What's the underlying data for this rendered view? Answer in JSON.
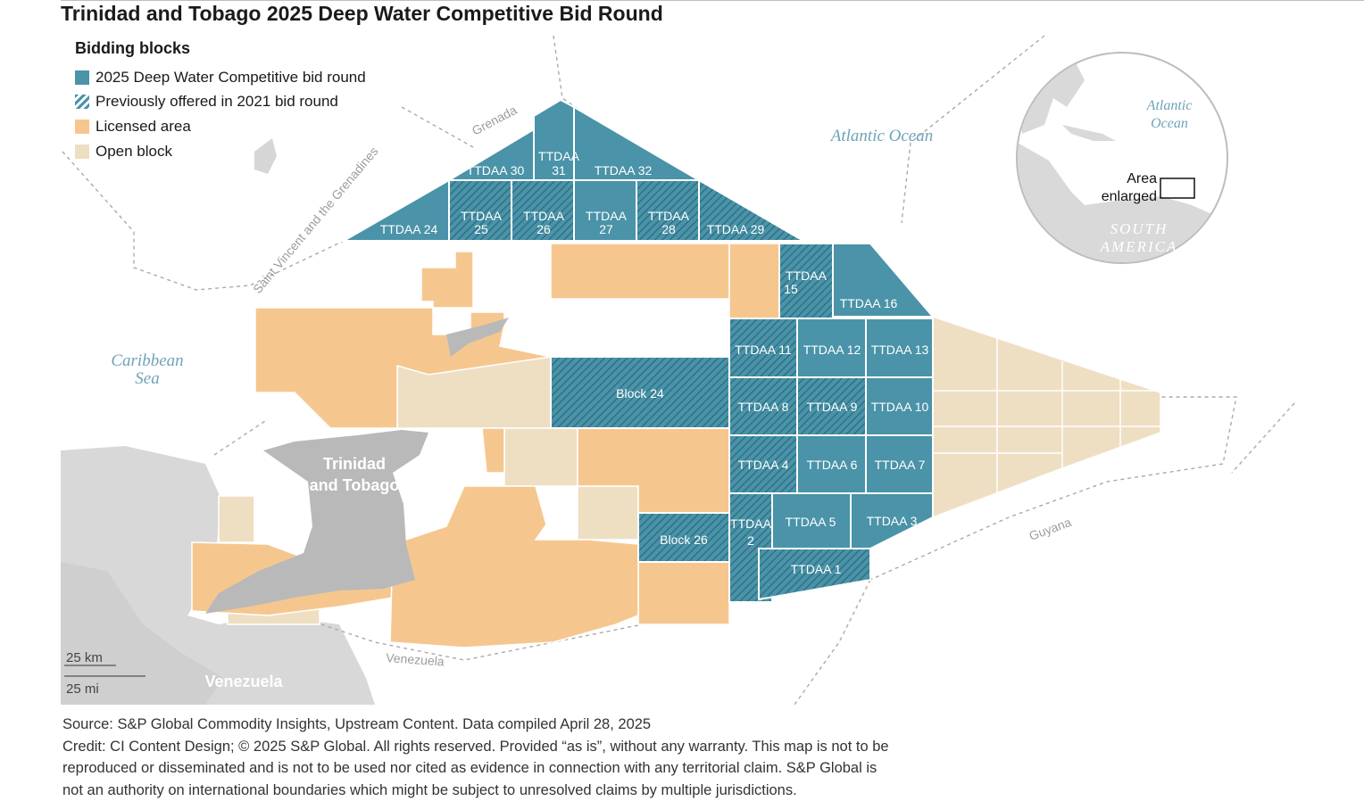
{
  "title": "Trinidad and Tobago 2025 Deep Water Competitive Bid Round",
  "legend": {
    "title": "Bidding blocks",
    "items": [
      {
        "label": "2025 Deep Water Competitive bid round",
        "color": "#4a93a8"
      },
      {
        "label": "Previously offered in 2021 bid round",
        "color": "#4a93a8"
      },
      {
        "label": "Licensed area",
        "color": "#f5c78f"
      },
      {
        "label": "Open block",
        "color": "#eedfc3"
      }
    ]
  },
  "labels": {
    "atlantic": "Atlantic Ocean",
    "caribbean_1": "Caribbean",
    "caribbean_2": "Sea",
    "country_1": "Trinidad",
    "country_2": "and Tobago",
    "venezuela_land": "Venezuela",
    "venezuela_border": "Venezuela",
    "guyana": "Guyana",
    "grenada": "Grenada",
    "svg": "Saint Vincent and the Grenadines"
  },
  "blocks": {
    "b30": "TTDAA 30",
    "b31a": "TTDAA",
    "b31b": "31",
    "b32": "TTDAA 32",
    "b24t": "TTDAA 24",
    "b25a": "TTDAA",
    "b25b": "25",
    "b26a": "TTDAA",
    "b26b": "26",
    "b27a": "TTDAA",
    "b27b": "27",
    "b28a": "TTDAA",
    "b28b": "28",
    "b29": "TTDAA 29",
    "b15a": "TTDAA",
    "b15b": "15",
    "b16": "TTDAA 16",
    "b11": "TTDAA 11",
    "b12": "TTDAA 12",
    "b13": "TTDAA 13",
    "block24": "Block 24",
    "b8": "TTDAA 8",
    "b9": "TTDAA 9",
    "b10": "TTDAA 10",
    "b4": "TTDAA 4",
    "b6": "TTDAA 6",
    "b7": "TTDAA 7",
    "b2a": "TTDAA",
    "b2b": "2",
    "b5": "TTDAA 5",
    "b3": "TTDAA 3",
    "block26": "Block 26",
    "b1": "TTDAA 1"
  },
  "inset": {
    "atlantic_1": "Atlantic",
    "atlantic_2": "Ocean",
    "area_1": "Area",
    "area_2": "enlarged",
    "sa_1": "SOUTH",
    "sa_2": "AMERICA"
  },
  "scale": {
    "km": "25 km",
    "mi": "25 mi"
  },
  "footer": {
    "line1": "Source: S&P Global Commodity Insights, Upstream Content. Data compiled April 28, 2025",
    "line2": "Credit: CI Content Design; © 2025 S&P Global. All rights reserved. Provided “as is”, without any warranty. This map is not to be",
    "line3": "reproduced or disseminated and is not to be used nor cited as evidence in connection with any territorial claim. S&P Global is",
    "line4": "not an authority on international boundaries which might be subject to unresolved claims by multiple jurisdictions."
  }
}
